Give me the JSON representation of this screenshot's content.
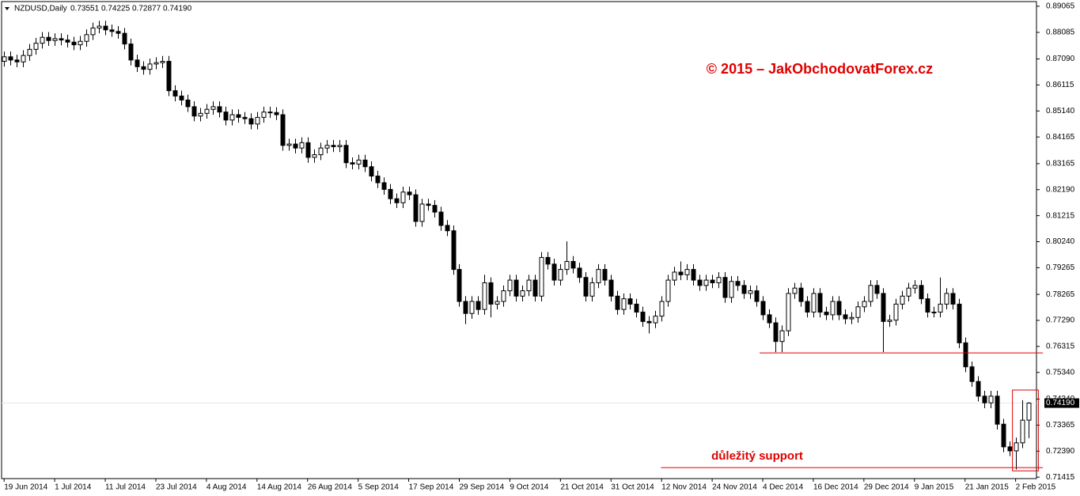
{
  "chart_data": {
    "type": "candlestick",
    "header": {
      "symbol": "NZDUSD,Daily",
      "values": [
        "0.73551",
        "0.74225",
        "0.72877",
        "0.74190"
      ]
    },
    "watermark": "© 2015 – JakObchodovatForex.cz",
    "annotation": "důležitý support",
    "up_color": "#ffffff",
    "down_color": "#000000",
    "line_color": "#000000",
    "annotation_color": "#e00000",
    "ylim": [
      0.7136,
      0.8924
    ],
    "yticks": [
      0.89065,
      0.88085,
      {
        "value": 0.8709,
        "label": "0.87090"
      },
      0.86115,
      {
        "value": 0.8514,
        "label": "0.85140"
      },
      0.84165,
      0.83165,
      {
        "value": 0.8219,
        "label": "0.82190"
      },
      0.81215,
      {
        "value": 0.8024,
        "label": "0.80240"
      },
      0.79265,
      0.78265,
      {
        "value": 0.7729,
        "label": "0.77290"
      },
      0.76315,
      {
        "value": 0.7534,
        "label": "0.75340"
      },
      {
        "value": 0.7434,
        "label": "0.74340"
      },
      0.73365,
      {
        "value": 0.7239,
        "label": "0.72390"
      },
      0.71415
    ],
    "xlim": [
      -0.4,
      163.3
    ],
    "xticks": [
      {
        "value": 0,
        "label": "19 Jun 2014"
      },
      {
        "value": 8,
        "label": "1 Jul 2014"
      },
      {
        "value": 16,
        "label": "11 Jul 2014"
      },
      {
        "value": 24,
        "label": "23 Jul 2014"
      },
      {
        "value": 32,
        "label": "4 Aug 2014"
      },
      {
        "value": 40,
        "label": "14 Aug 2014"
      },
      {
        "value": 48,
        "label": "26 Aug 2014"
      },
      {
        "value": 56,
        "label": "5 Sep 2014"
      },
      {
        "value": 64,
        "label": "17 Sep 2014"
      },
      {
        "value": 72,
        "label": "29 Sep 2014"
      },
      {
        "value": 80,
        "label": "9 Oct 2014"
      },
      {
        "value": 88,
        "label": "21 Oct 2014"
      },
      {
        "value": 96,
        "label": "31 Oct 2014"
      },
      {
        "value": 104,
        "label": "12 Nov 2014"
      },
      {
        "value": 112,
        "label": "24 Nov 2014"
      },
      {
        "value": 120,
        "label": "4 Dec 2014"
      },
      {
        "value": 128,
        "label": "16 Dec 2014"
      },
      {
        "value": 136,
        "label": "29 Dec 2014"
      },
      {
        "value": 144,
        "label": "9 Jan 2015"
      },
      {
        "value": 152,
        "label": "21 Jan 2015"
      },
      {
        "value": 160,
        "label": "2 Feb 2015"
      }
    ],
    "last_price": {
      "value": 0.7419,
      "label": "0.74190"
    },
    "hlines": [
      {
        "y": 0.7607,
        "x_start": 119.5
      },
      {
        "y": 0.7177,
        "x_start": 103.9
      }
    ],
    "box": {
      "x": [
        159.5,
        163.6
      ],
      "y": [
        0.7165,
        0.7468
      ]
    },
    "ohlc": [
      [
        0.87,
        0.8737,
        0.868,
        0.8717
      ],
      [
        0.8717,
        0.8737,
        0.8685,
        0.8705
      ],
      [
        0.8705,
        0.8725,
        0.8678,
        0.8698
      ],
      [
        0.8698,
        0.8742,
        0.8678,
        0.8722
      ],
      [
        0.8722,
        0.8765,
        0.8702,
        0.8745
      ],
      [
        0.8745,
        0.8788,
        0.8725,
        0.8768
      ],
      [
        0.8768,
        0.881,
        0.8748,
        0.879
      ],
      [
        0.879,
        0.881,
        0.8758,
        0.8778
      ],
      [
        0.8778,
        0.8805,
        0.8758,
        0.8785
      ],
      [
        0.8785,
        0.8805,
        0.876,
        0.878
      ],
      [
        0.878,
        0.88,
        0.8752,
        0.8772
      ],
      [
        0.8772,
        0.8792,
        0.8742,
        0.8762
      ],
      [
        0.8762,
        0.8795,
        0.8742,
        0.8775
      ],
      [
        0.8775,
        0.882,
        0.8755,
        0.88
      ],
      [
        0.88,
        0.8845,
        0.878,
        0.8825
      ],
      [
        0.8825,
        0.8852,
        0.8805,
        0.8832
      ],
      [
        0.8832,
        0.8852,
        0.8798,
        0.8818
      ],
      [
        0.8818,
        0.8838,
        0.8792,
        0.8812
      ],
      [
        0.8812,
        0.8832,
        0.8785,
        0.8805
      ],
      [
        0.8805,
        0.8825,
        0.8745,
        0.8765
      ],
      [
        0.8765,
        0.8785,
        0.8685,
        0.8705
      ],
      [
        0.8705,
        0.8725,
        0.866,
        0.868
      ],
      [
        0.868,
        0.87,
        0.865,
        0.867
      ],
      [
        0.867,
        0.871,
        0.865,
        0.869
      ],
      [
        0.869,
        0.8715,
        0.867,
        0.8695
      ],
      [
        0.8695,
        0.872,
        0.8675,
        0.87
      ],
      [
        0.87,
        0.872,
        0.857,
        0.859
      ],
      [
        0.859,
        0.861,
        0.855,
        0.857
      ],
      [
        0.857,
        0.859,
        0.8535,
        0.8555
      ],
      [
        0.8555,
        0.8575,
        0.851,
        0.853
      ],
      [
        0.853,
        0.855,
        0.8475,
        0.8495
      ],
      [
        0.8495,
        0.8525,
        0.8475,
        0.8505
      ],
      [
        0.8505,
        0.854,
        0.8485,
        0.852
      ],
      [
        0.852,
        0.855,
        0.85,
        0.853
      ],
      [
        0.853,
        0.855,
        0.849,
        0.851
      ],
      [
        0.851,
        0.853,
        0.846,
        0.848
      ],
      [
        0.848,
        0.852,
        0.846,
        0.85
      ],
      [
        0.85,
        0.852,
        0.847,
        0.849
      ],
      [
        0.849,
        0.851,
        0.8465,
        0.8485
      ],
      [
        0.8485,
        0.8505,
        0.8445,
        0.8465
      ],
      [
        0.8465,
        0.851,
        0.8445,
        0.849
      ],
      [
        0.849,
        0.853,
        0.847,
        0.851
      ],
      [
        0.851,
        0.853,
        0.8488,
        0.8508
      ],
      [
        0.8508,
        0.8528,
        0.848,
        0.85
      ],
      [
        0.85,
        0.852,
        0.8365,
        0.8385
      ],
      [
        0.8385,
        0.841,
        0.8365,
        0.839
      ],
      [
        0.839,
        0.841,
        0.8355,
        0.8375
      ],
      [
        0.8375,
        0.8415,
        0.8355,
        0.8395
      ],
      [
        0.8395,
        0.8415,
        0.832,
        0.834
      ],
      [
        0.834,
        0.837,
        0.832,
        0.835
      ],
      [
        0.835,
        0.8395,
        0.833,
        0.8375
      ],
      [
        0.8375,
        0.8405,
        0.8355,
        0.8385
      ],
      [
        0.8385,
        0.8405,
        0.836,
        0.838
      ],
      [
        0.838,
        0.8405,
        0.836,
        0.8385
      ],
      [
        0.8385,
        0.8405,
        0.83,
        0.832
      ],
      [
        0.832,
        0.834,
        0.8295,
        0.8315
      ],
      [
        0.8315,
        0.835,
        0.8295,
        0.833
      ],
      [
        0.833,
        0.835,
        0.8285,
        0.8305
      ],
      [
        0.8305,
        0.8325,
        0.825,
        0.827
      ],
      [
        0.827,
        0.829,
        0.8225,
        0.8245
      ],
      [
        0.8245,
        0.8265,
        0.82,
        0.822
      ],
      [
        0.822,
        0.824,
        0.8165,
        0.8185
      ],
      [
        0.8185,
        0.8205,
        0.815,
        0.817
      ],
      [
        0.817,
        0.823,
        0.815,
        0.821
      ],
      [
        0.821,
        0.823,
        0.818,
        0.82
      ],
      [
        0.82,
        0.822,
        0.808,
        0.81
      ],
      [
        0.81,
        0.8185,
        0.808,
        0.8165
      ],
      [
        0.8165,
        0.8185,
        0.814,
        0.816
      ],
      [
        0.816,
        0.818,
        0.8115,
        0.8135
      ],
      [
        0.8135,
        0.8155,
        0.8065,
        0.8085
      ],
      [
        0.8085,
        0.8105,
        0.8045,
        0.8065
      ],
      [
        0.8065,
        0.8085,
        0.79,
        0.792
      ],
      [
        0.792,
        0.794,
        0.778,
        0.78
      ],
      [
        0.78,
        0.782,
        0.7715,
        0.7755
      ],
      [
        0.7755,
        0.782,
        0.7735,
        0.78
      ],
      [
        0.78,
        0.782,
        0.775,
        0.777
      ],
      [
        0.777,
        0.79,
        0.775,
        0.787
      ],
      [
        0.787,
        0.789,
        0.774,
        0.779
      ],
      [
        0.779,
        0.782,
        0.777,
        0.78
      ],
      [
        0.78,
        0.786,
        0.778,
        0.784
      ],
      [
        0.784,
        0.79,
        0.782,
        0.788
      ],
      [
        0.788,
        0.79,
        0.78,
        0.782
      ],
      [
        0.782,
        0.786,
        0.78,
        0.784
      ],
      [
        0.784,
        0.79,
        0.782,
        0.788
      ],
      [
        0.788,
        0.79,
        0.78,
        0.782
      ],
      [
        0.782,
        0.7985,
        0.78,
        0.7965
      ],
      [
        0.7965,
        0.7985,
        0.792,
        0.794
      ],
      [
        0.794,
        0.796,
        0.786,
        0.788
      ],
      [
        0.788,
        0.794,
        0.786,
        0.792
      ],
      [
        0.792,
        0.8025,
        0.79,
        0.795
      ],
      [
        0.795,
        0.797,
        0.7905,
        0.7925
      ],
      [
        0.7925,
        0.7945,
        0.787,
        0.789
      ],
      [
        0.789,
        0.791,
        0.78,
        0.782
      ],
      [
        0.782,
        0.789,
        0.78,
        0.787
      ],
      [
        0.787,
        0.794,
        0.785,
        0.792
      ],
      [
        0.792,
        0.794,
        0.786,
        0.788
      ],
      [
        0.788,
        0.79,
        0.78,
        0.782
      ],
      [
        0.782,
        0.784,
        0.775,
        0.777
      ],
      [
        0.777,
        0.783,
        0.775,
        0.781
      ],
      [
        0.781,
        0.783,
        0.777,
        0.779
      ],
      [
        0.779,
        0.781,
        0.774,
        0.776
      ],
      [
        0.776,
        0.778,
        0.7705,
        0.7725
      ],
      [
        0.7725,
        0.7745,
        0.768,
        0.772
      ],
      [
        0.772,
        0.7765,
        0.77,
        0.7745
      ],
      [
        0.7745,
        0.782,
        0.7725,
        0.78
      ],
      [
        0.78,
        0.79,
        0.778,
        0.788
      ],
      [
        0.788,
        0.793,
        0.786,
        0.791
      ],
      [
        0.791,
        0.795,
        0.788,
        0.79
      ],
      [
        0.79,
        0.794,
        0.788,
        0.792
      ],
      [
        0.792,
        0.794,
        0.786,
        0.788
      ],
      [
        0.788,
        0.79,
        0.784,
        0.786
      ],
      [
        0.786,
        0.79,
        0.784,
        0.788
      ],
      [
        0.788,
        0.79,
        0.785,
        0.787
      ],
      [
        0.787,
        0.791,
        0.785,
        0.789
      ],
      [
        0.789,
        0.791,
        0.7795,
        0.7815
      ],
      [
        0.7815,
        0.7895,
        0.7795,
        0.7875
      ],
      [
        0.7875,
        0.7895,
        0.784,
        0.786
      ],
      [
        0.786,
        0.788,
        0.781,
        0.783
      ],
      [
        0.783,
        0.786,
        0.781,
        0.784
      ],
      [
        0.784,
        0.786,
        0.778,
        0.78
      ],
      [
        0.78,
        0.782,
        0.773,
        0.775
      ],
      [
        0.775,
        0.777,
        0.77,
        0.772
      ],
      [
        0.772,
        0.774,
        0.761,
        0.765
      ],
      [
        0.765,
        0.771,
        0.761,
        0.769
      ],
      [
        0.769,
        0.785,
        0.767,
        0.783
      ],
      [
        0.783,
        0.787,
        0.781,
        0.785
      ],
      [
        0.785,
        0.787,
        0.778,
        0.78
      ],
      [
        0.78,
        0.782,
        0.774,
        0.776
      ],
      [
        0.776,
        0.785,
        0.774,
        0.783
      ],
      [
        0.783,
        0.785,
        0.774,
        0.776
      ],
      [
        0.776,
        0.778,
        0.773,
        0.775
      ],
      [
        0.775,
        0.782,
        0.773,
        0.78
      ],
      [
        0.78,
        0.782,
        0.773,
        0.775
      ],
      [
        0.775,
        0.777,
        0.7715,
        0.7735
      ],
      [
        0.7735,
        0.776,
        0.7715,
        0.774
      ],
      [
        0.774,
        0.78,
        0.772,
        0.778
      ],
      [
        0.778,
        0.782,
        0.776,
        0.78
      ],
      [
        0.78,
        0.788,
        0.778,
        0.786
      ],
      [
        0.786,
        0.788,
        0.781,
        0.783
      ],
      [
        0.783,
        0.785,
        0.761,
        0.7725
      ],
      [
        0.7725,
        0.775,
        0.7705,
        0.773
      ],
      [
        0.773,
        0.781,
        0.771,
        0.779
      ],
      [
        0.779,
        0.784,
        0.777,
        0.782
      ],
      [
        0.782,
        0.787,
        0.78,
        0.785
      ],
      [
        0.785,
        0.788,
        0.783,
        0.786
      ],
      [
        0.786,
        0.788,
        0.779,
        0.781
      ],
      [
        0.781,
        0.783,
        0.774,
        0.776
      ],
      [
        0.776,
        0.778,
        0.774,
        0.776
      ],
      [
        0.776,
        0.789,
        0.774,
        0.779
      ],
      [
        0.779,
        0.785,
        0.777,
        0.783
      ],
      [
        0.783,
        0.785,
        0.777,
        0.779
      ],
      [
        0.779,
        0.781,
        0.7625,
        0.7645
      ],
      [
        0.7645,
        0.7665,
        0.7535,
        0.7555
      ],
      [
        0.7555,
        0.7575,
        0.748,
        0.75
      ],
      [
        0.75,
        0.752,
        0.7425,
        0.7445
      ],
      [
        0.7445,
        0.7465,
        0.74,
        0.742
      ],
      [
        0.742,
        0.7465,
        0.74,
        0.7445
      ],
      [
        0.7445,
        0.7465,
        0.732,
        0.734
      ],
      [
        0.734,
        0.736,
        0.7235,
        0.7255
      ],
      [
        0.7255,
        0.7275,
        0.722,
        0.724
      ],
      [
        0.724,
        0.729,
        0.717,
        0.727
      ],
      [
        0.727,
        0.743,
        0.725,
        0.7355
      ],
      [
        0.73551,
        0.74225,
        0.72877,
        0.7419
      ]
    ]
  }
}
